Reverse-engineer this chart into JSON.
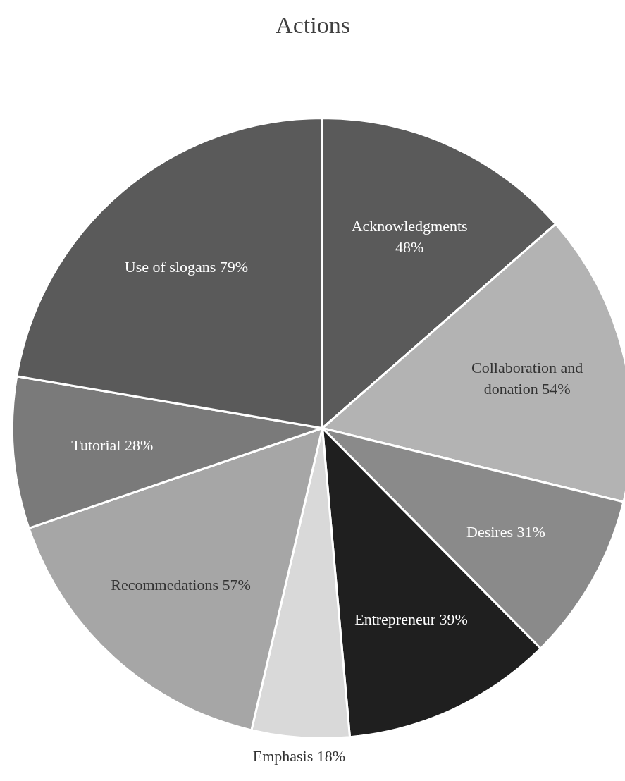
{
  "chart_data": {
    "type": "pie",
    "title": "Actions",
    "categories": [
      "Acknowledgments",
      "Collaboration and donation",
      "Desires",
      "Entrepreneur",
      "Emphasis",
      "Recommedations",
      "Tutorial",
      "Use of slogans"
    ],
    "values": [
      48,
      54,
      31,
      39,
      18,
      57,
      28,
      79
    ],
    "colors": [
      "#5a5a5a",
      "#b3b3b3",
      "#8a8a8a",
      "#1f1f1f",
      "#d9d9d9",
      "#a6a6a6",
      "#7a7a7a",
      "#5a5a5a"
    ],
    "value_labels": [
      "48%",
      "54%",
      "31%",
      "39%",
      "18%",
      "57%",
      "28%",
      "79%"
    ]
  }
}
